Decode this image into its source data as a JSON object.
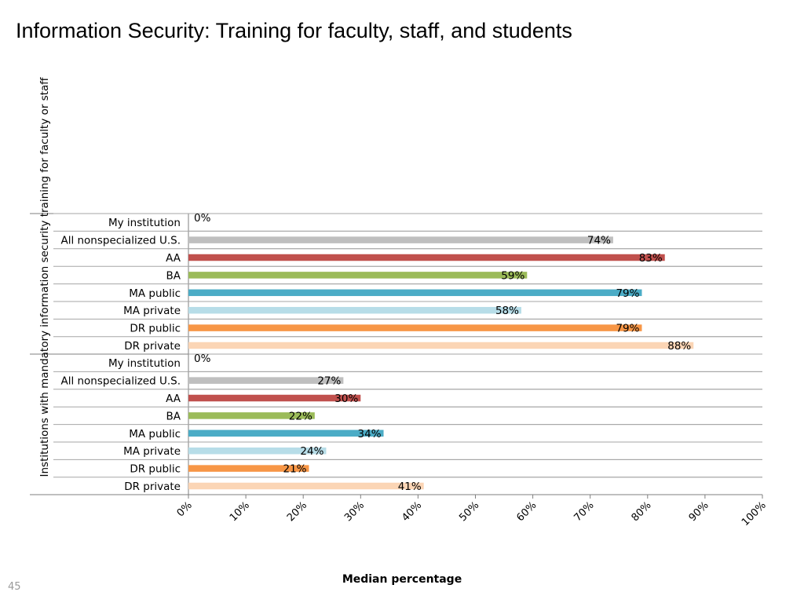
{
  "slide": {
    "title": "Information Security: Training for faculty, staff, and students",
    "page_number": "45"
  },
  "chart_data": {
    "type": "bar",
    "orientation": "horizontal",
    "xlabel": "Median percentage",
    "ylabel": "Institutions with mandatory information security training for faculty or staff",
    "xlim": [
      0,
      100
    ],
    "x_ticks": [
      "0%",
      "10%",
      "20%",
      "30%",
      "40%",
      "50%",
      "60%",
      "70%",
      "80%",
      "90%",
      "100%"
    ],
    "grid": "horizontal separators",
    "groups": [
      {
        "rows": [
          {
            "label": "My institution",
            "value": 0,
            "value_label": "0%",
            "color": "#ffffff"
          },
          {
            "label": "All nonspecialized U.S.",
            "value": 74,
            "value_label": "74%",
            "color": "#bfbfbf"
          },
          {
            "label": "AA",
            "value": 83,
            "value_label": "83%",
            "color": "#c0504d"
          },
          {
            "label": "BA",
            "value": 59,
            "value_label": "59%",
            "color": "#9bbb59"
          },
          {
            "label": "MA public",
            "value": 79,
            "value_label": "79%",
            "color": "#4bacc6"
          },
          {
            "label": "MA private",
            "value": 58,
            "value_label": "58%",
            "color": "#b7dde8"
          },
          {
            "label": "DR public",
            "value": 79,
            "value_label": "79%",
            "color": "#f79646"
          },
          {
            "label": "DR private",
            "value": 88,
            "value_label": "88%",
            "color": "#fbd5b5"
          }
        ]
      },
      {
        "rows": [
          {
            "label": "My institution",
            "value": 0,
            "value_label": "0%",
            "color": "#ffffff"
          },
          {
            "label": "All nonspecialized U.S.",
            "value": 27,
            "value_label": "27%",
            "color": "#bfbfbf"
          },
          {
            "label": "AA",
            "value": 30,
            "value_label": "30%",
            "color": "#c0504d"
          },
          {
            "label": "BA",
            "value": 22,
            "value_label": "22%",
            "color": "#9bbb59"
          },
          {
            "label": "MA public",
            "value": 34,
            "value_label": "34%",
            "color": "#4bacc6"
          },
          {
            "label": "MA private",
            "value": 24,
            "value_label": "24%",
            "color": "#b7dde8"
          },
          {
            "label": "DR public",
            "value": 21,
            "value_label": "21%",
            "color": "#f79646"
          },
          {
            "label": "DR private",
            "value": 41,
            "value_label": "41%",
            "color": "#fbd5b5"
          }
        ]
      }
    ]
  }
}
